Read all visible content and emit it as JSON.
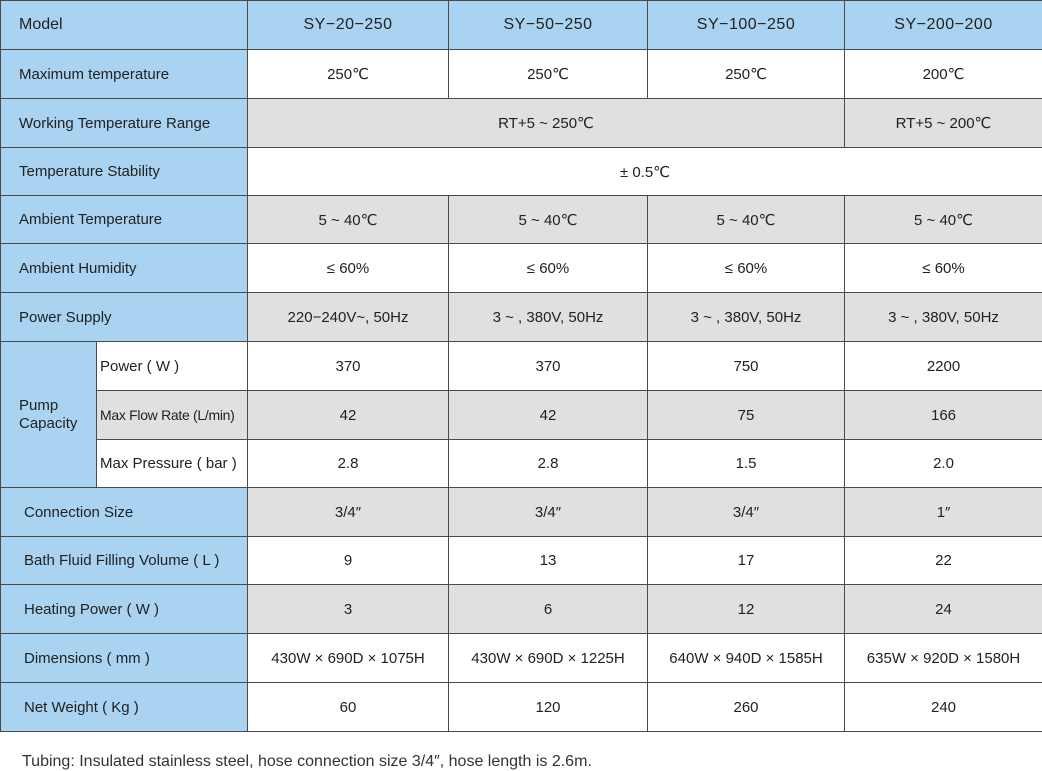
{
  "table": {
    "header": {
      "label": "Model",
      "models": [
        "SY−20−250",
        "SY−50−250",
        "SY−100−250",
        "SY−200−200"
      ]
    },
    "max_temp": {
      "label": "Maximum temperature",
      "values": [
        "250℃",
        "250℃",
        "250℃",
        "200℃"
      ]
    },
    "working_range": {
      "label": "Working Temperature Range",
      "value_a": "RT+5 ~ 250℃",
      "value_b": "RT+5 ~ 200℃"
    },
    "stability": {
      "label": "Temperature Stability",
      "value": "± 0.5℃"
    },
    "ambient_temp": {
      "label": "Ambient Temperature",
      "values": [
        "5 ~ 40℃",
        "5 ~ 40℃",
        "5 ~ 40℃",
        "5 ~ 40℃"
      ]
    },
    "ambient_humidity": {
      "label": "Ambient Humidity",
      "values": [
        "≤ 60%",
        "≤ 60%",
        "≤ 60%",
        "≤ 60%"
      ]
    },
    "power_supply": {
      "label": "Power Supply",
      "values": [
        "220−240V~, 50Hz",
        "3 ~ , 380V, 50Hz",
        "3 ~ , 380V, 50Hz",
        "3 ~ , 380V, 50Hz"
      ]
    },
    "pump": {
      "label_line1": "Pump",
      "label_line2": "Capacity",
      "power": {
        "label": "Power ( W )",
        "values": [
          "370",
          "370",
          "750",
          "2200"
        ]
      },
      "flow": {
        "label": "Max Flow Rate (L/min)",
        "values": [
          "42",
          "42",
          "75",
          "166"
        ]
      },
      "pressure": {
        "label": "Max Pressure ( bar )",
        "values": [
          "2.8",
          "2.8",
          "1.5",
          "2.0"
        ]
      }
    },
    "connection": {
      "label": "Connection Size",
      "values": [
        "3/4″",
        "3/4″",
        "3/4″",
        "1″"
      ]
    },
    "bath_volume": {
      "label": "Bath Fluid Filling Volume ( L )",
      "values": [
        "9",
        "13",
        "17",
        "22"
      ]
    },
    "heating_power": {
      "label": "Heating Power ( W )",
      "values": [
        "3",
        "6",
        "12",
        "24"
      ]
    },
    "dimensions": {
      "label": "Dimensions ( mm )",
      "values": [
        "430W × 690D × 1075H",
        "430W × 690D × 1225H",
        "640W × 940D × 1585H",
        "635W × 920D × 1580H"
      ]
    },
    "net_weight": {
      "label": "Net Weight ( Kg )",
      "values": [
        "60",
        "120",
        "260",
        "240"
      ]
    }
  },
  "footnote": "Tubing: Insulated stainless steel, hose connection size 3/4″, hose length is 2.6m.",
  "colors": {
    "label_bg": "#a9d3f0",
    "gray_bg": "#e0e0e0",
    "white_bg": "#ffffff",
    "border": "#4a4a4a"
  }
}
